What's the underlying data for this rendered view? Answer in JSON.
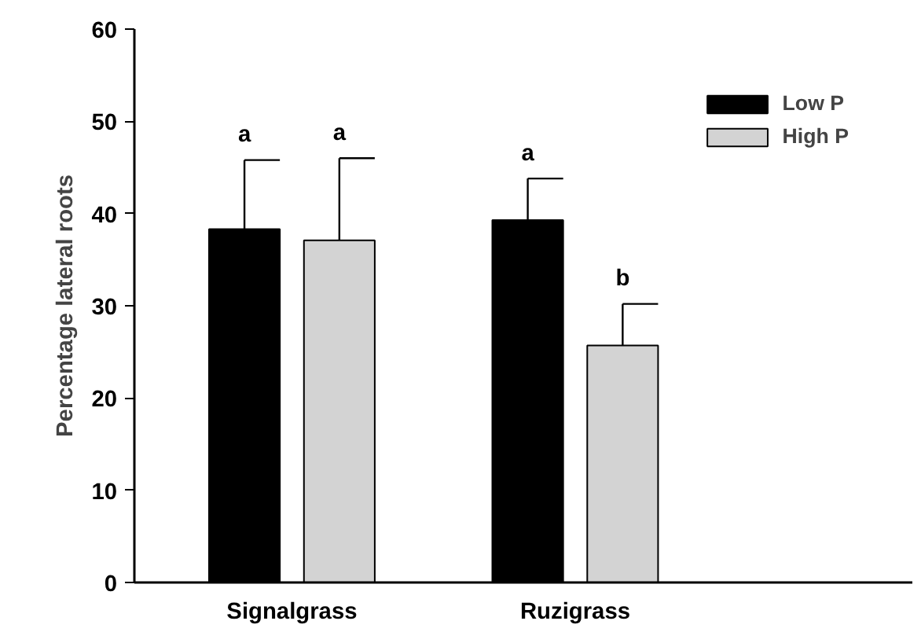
{
  "chart_data": {
    "type": "bar",
    "ylabel": "Percentage lateral roots",
    "categories": [
      "Signalgrass",
      "Ruzigrass"
    ],
    "series": [
      {
        "name": "Low P",
        "color": "#000000",
        "values": [
          38.3,
          39.3
        ],
        "errors": [
          [
            38.3,
            45.8
          ],
          [
            39.3,
            43.8
          ]
        ]
      },
      {
        "name": "High P",
        "color": "#d3d3d3",
        "values": [
          37.1,
          25.7
        ],
        "errors": [
          [
            37.1,
            46.0
          ],
          [
            25.7,
            30.2
          ]
        ]
      }
    ],
    "annotations": [
      "a",
      "a",
      "a",
      "b"
    ],
    "ylim": [
      0,
      60
    ],
    "yticks": [
      0,
      10,
      20,
      30,
      40,
      50,
      60
    ],
    "grid": false,
    "legend": "top right"
  }
}
